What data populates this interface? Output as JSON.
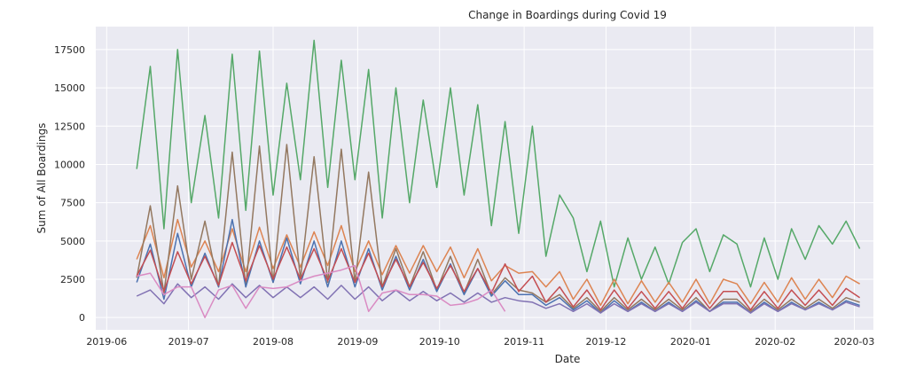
{
  "chart_data": {
    "type": "line",
    "title": "Change in Boardings during Covid 19",
    "xlabel": "Date",
    "ylabel": "Sum of All Boardings",
    "ylim": [
      -800,
      19000
    ],
    "xlim": [
      "2019-05-28",
      "2020-03-08"
    ],
    "grid": true,
    "yticks": [
      0,
      2500,
      5000,
      7500,
      10000,
      12500,
      15000,
      17500
    ],
    "ytick_labels": [
      "0",
      "2500",
      "5000",
      "7500",
      "10000",
      "12500",
      "15000",
      "17500"
    ],
    "xticks": [
      "2019-06-01",
      "2019-07-01",
      "2019-08-01",
      "2019-09-01",
      "2019-10-01",
      "2019-11-01",
      "2019-12-01",
      "2020-01-01",
      "2020-02-01",
      "2020-03-01"
    ],
    "xtick_labels": [
      "2019-06",
      "2019-07",
      "2019-08",
      "2019-09",
      "2019-10",
      "2019-11",
      "2019-12",
      "2020-01",
      "2020-02",
      "2020-03"
    ],
    "x_start": "2019-06-12",
    "x_step_days": 5,
    "series": [
      {
        "name": "green",
        "color": "#55a868",
        "values": [
          9700,
          16400,
          5800,
          17500,
          7500,
          13200,
          6500,
          17200,
          7000,
          17400,
          8000,
          15300,
          9000,
          18100,
          8500,
          16800,
          9000,
          16200,
          6500,
          15000,
          7500,
          14200,
          8500,
          15000,
          8000,
          13900,
          6000,
          12800,
          5500,
          12500,
          4000,
          8000,
          6500,
          3000,
          6300,
          2000,
          5200,
          2500,
          4600,
          2200,
          4900,
          5800,
          3000,
          5400,
          4800,
          2000,
          5200,
          2500,
          5800,
          3800,
          6000,
          4800,
          6300,
          4500
        ]
      },
      {
        "name": "orange",
        "color": "#dd8452",
        "values": [
          3800,
          6000,
          2600,
          6400,
          3300,
          5000,
          3000,
          5800,
          3000,
          5900,
          3200,
          5400,
          3300,
          5600,
          3400,
          6000,
          3000,
          5000,
          2800,
          4700,
          2900,
          4700,
          3000,
          4600,
          2600,
          4500,
          2400,
          3400,
          2900,
          3000,
          2000,
          3000,
          1200,
          2500,
          800,
          2500,
          900,
          2400,
          1000,
          2300,
          1000,
          2500,
          900,
          2500,
          2200,
          900,
          2300,
          1000,
          2600,
          1200,
          2500,
          1300,
          2700,
          2200
        ]
      },
      {
        "name": "brown",
        "color": "#937860",
        "values": [
          2600,
          7300,
          1600,
          8600,
          2500,
          6300,
          2000,
          10800,
          2000,
          11200,
          2300,
          11300,
          2500,
          10500,
          2300,
          11000,
          2300,
          9500,
          2000,
          4500,
          2000,
          4300,
          1800,
          4000,
          1600,
          3800,
          1500,
          2600,
          1800,
          1600,
          1000,
          1500,
          600,
          1300,
          400,
          1300,
          500,
          1200,
          500,
          1200,
          500,
          1300,
          400,
          1200,
          1200,
          400,
          1200,
          500,
          1200,
          600,
          1200,
          600,
          1300,
          1000
        ]
      },
      {
        "name": "blue",
        "color": "#4c72b0",
        "values": [
          2300,
          4800,
          1200,
          5500,
          2000,
          4200,
          2000,
          6400,
          2000,
          5000,
          2300,
          5200,
          2200,
          5000,
          2000,
          5000,
          2000,
          4500,
          1800,
          4000,
          1800,
          3800,
          1700,
          3500,
          1500,
          3200,
          1400,
          2400,
          1500,
          1500,
          800,
          1300,
          500,
          1100,
          300,
          1100,
          400,
          1000,
          400,
          1000,
          400,
          1100,
          400,
          1000,
          1000,
          300,
          1000,
          400,
          1000,
          500,
          1000,
          500,
          1100,
          800
        ]
      },
      {
        "name": "red",
        "color": "#c44e52",
        "values": [
          2700,
          4400,
          1700,
          4300,
          2200,
          4000,
          2100,
          4900,
          2400,
          4700,
          2500,
          4600,
          2500,
          4500,
          2400,
          4500,
          2300,
          4200,
          2000,
          3800,
          2000,
          3600,
          1900,
          3400,
          1700,
          3200,
          1600,
          3500,
          1700,
          2700,
          1000,
          2000,
          700,
          1800,
          500,
          1800,
          600,
          1700,
          600,
          1700,
          600,
          1800,
          600,
          1700,
          1700,
          500,
          1700,
          600,
          1800,
          800,
          1800,
          800,
          1900,
          1300
        ]
      },
      {
        "name": "purple",
        "color": "#8172b3",
        "values": [
          1400,
          1800,
          900,
          2200,
          1300,
          2000,
          1200,
          2200,
          1300,
          2100,
          1300,
          2000,
          1300,
          2000,
          1200,
          2100,
          1200,
          2000,
          1100,
          1800,
          1100,
          1700,
          1100,
          1600,
          1000,
          1600,
          1000,
          1300,
          1100,
          1000,
          600,
          900,
          400,
          900,
          300,
          900,
          400,
          900,
          400,
          900,
          400,
          1000,
          400,
          900,
          900,
          300,
          900,
          400,
          900,
          500,
          900,
          500,
          1000,
          700
        ]
      },
      {
        "name": "pink",
        "color": "#da8bc3",
        "values": [
          2700,
          2900,
          1500,
          2000,
          2000,
          0,
          1800,
          2100,
          600,
          2000,
          1900,
          2000,
          2400,
          2700,
          2900,
          3100,
          3400,
          400,
          1600,
          1800,
          1500,
          1500,
          1400,
          800,
          900,
          1200,
          1800,
          400
        ]
      }
    ]
  }
}
